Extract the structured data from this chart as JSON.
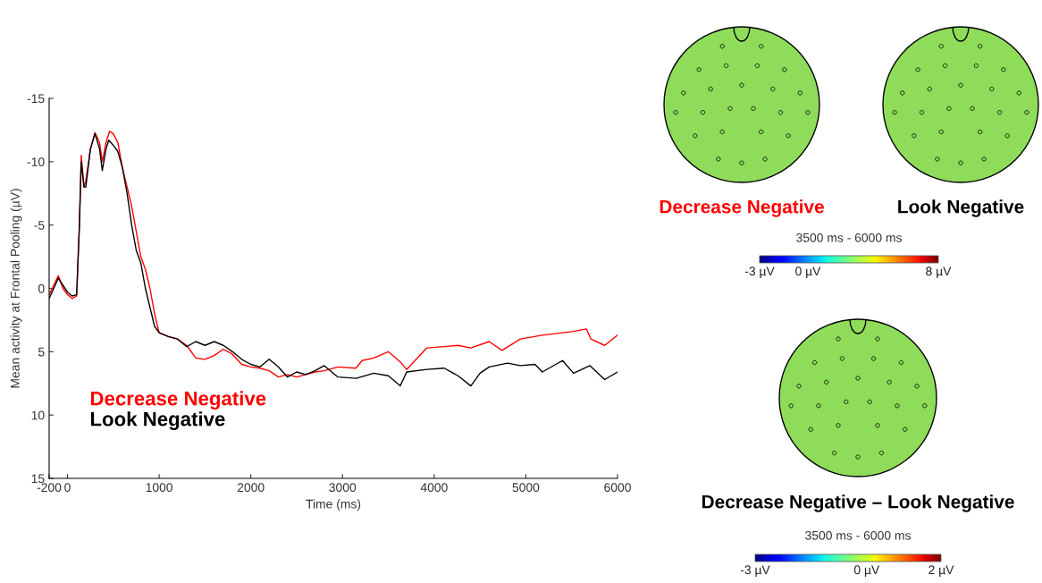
{
  "chart_data": [
    {
      "type": "line",
      "xlabel": "Time (ms)",
      "ylabel": "Mean activity at Frontal Pooling (µV)",
      "xlim": [
        -200,
        6000
      ],
      "xticks": [
        -200,
        0,
        1000,
        2000,
        3000,
        4000,
        5000,
        6000
      ],
      "ylim": [
        15,
        -15
      ],
      "yticks": [
        -15,
        -10,
        -5,
        0,
        5,
        10,
        15
      ],
      "legend": "bottom left",
      "grid": false,
      "series": [
        {
          "name": "Decrease Negative",
          "color": "#ff0000",
          "x": [
            -200,
            -100,
            -50,
            0,
            50,
            100,
            130,
            150,
            180,
            200,
            250,
            300,
            350,
            380,
            420,
            460,
            500,
            550,
            600,
            650,
            700,
            750,
            800,
            850,
            900,
            950,
            1000,
            1100,
            1200,
            1300,
            1400,
            1500,
            1600,
            1700,
            1800,
            1900,
            2000,
            2100,
            2200,
            2300,
            2400,
            2500,
            2600,
            2700,
            2800,
            2950,
            3146,
            3214,
            3340,
            3500,
            3630,
            3700,
            3920,
            4110,
            4260,
            4400,
            4600,
            4740,
            4940,
            5180,
            5520,
            5660,
            5710,
            5860,
            6000
          ],
          "values": [
            0.5,
            -1.0,
            0,
            0.5,
            0.8,
            0.6,
            -5,
            -10.5,
            -8,
            -8.5,
            -11,
            -12.3,
            -11.5,
            -10,
            -11.5,
            -12.4,
            -12.2,
            -11.5,
            -9.5,
            -8,
            -6.5,
            -4.5,
            -2.5,
            -1.5,
            0,
            2,
            3.5,
            3.8,
            4,
            4.5,
            5.5,
            5.6,
            5.3,
            4.8,
            5.2,
            6,
            6.2,
            6.3,
            6.5,
            7,
            6.8,
            7.0,
            6.8,
            6.6,
            6.5,
            6.2,
            6.3,
            5.7,
            5.5,
            5.0,
            5.8,
            6.4,
            4.7,
            4.6,
            4.5,
            4.7,
            4.2,
            4.9,
            4.0,
            3.7,
            3.4,
            3.2,
            4.0,
            4.5,
            3.7
          ]
        },
        {
          "name": "Look Negative",
          "color": "#000000",
          "x": [
            -200,
            -100,
            0,
            50,
            100,
            130,
            150,
            180,
            200,
            250,
            300,
            350,
            380,
            420,
            450,
            500,
            550,
            600,
            650,
            700,
            750,
            800,
            850,
            900,
            950,
            1000,
            1100,
            1200,
            1300,
            1400,
            1500,
            1600,
            1700,
            1800,
            1900,
            2000,
            2100,
            2200,
            2300,
            2400,
            2500,
            2600,
            2700,
            2800,
            2950,
            3150,
            3340,
            3500,
            3630,
            3700,
            3920,
            4110,
            4260,
            4400,
            4500,
            4600,
            4800,
            4940,
            5100,
            5180,
            5400,
            5520,
            5700,
            5860,
            6000
          ],
          "values": [
            0.8,
            -0.8,
            0.3,
            0.6,
            0.5,
            -5,
            -10,
            -8,
            -8,
            -11,
            -12.2,
            -11,
            -9.3,
            -11,
            -11.7,
            -11.3,
            -10.8,
            -9.5,
            -7.5,
            -5,
            -3,
            -2,
            0,
            1.5,
            3,
            3.5,
            3.8,
            4,
            4.6,
            4.2,
            4.5,
            4.2,
            4.5,
            5,
            5.6,
            6,
            6.2,
            5.6,
            6.2,
            7.0,
            6.6,
            6.8,
            6.5,
            6.1,
            7.0,
            7.1,
            6.7,
            6.9,
            7.7,
            6.6,
            6.4,
            6.3,
            6.9,
            7.7,
            6.7,
            6.2,
            5.9,
            6.1,
            6.0,
            6.6,
            5.7,
            6.7,
            6.1,
            7.2,
            6.6
          ]
        }
      ]
    },
    {
      "type": "other",
      "title": "Decrease Negative"
    },
    {
      "type": "other",
      "title": "Look Negative",
      "subtitle": "3500 ms - 6000 ms",
      "annotations": [
        "-3 µV",
        "0 µV",
        "8 µV"
      ]
    },
    {
      "type": "other",
      "title": "Decrease Negative – Look Negative",
      "subtitle": "3500 ms - 6000 ms",
      "annotations": [
        "-3 µV",
        "0 µV",
        "2 µV"
      ]
    }
  ]
}
